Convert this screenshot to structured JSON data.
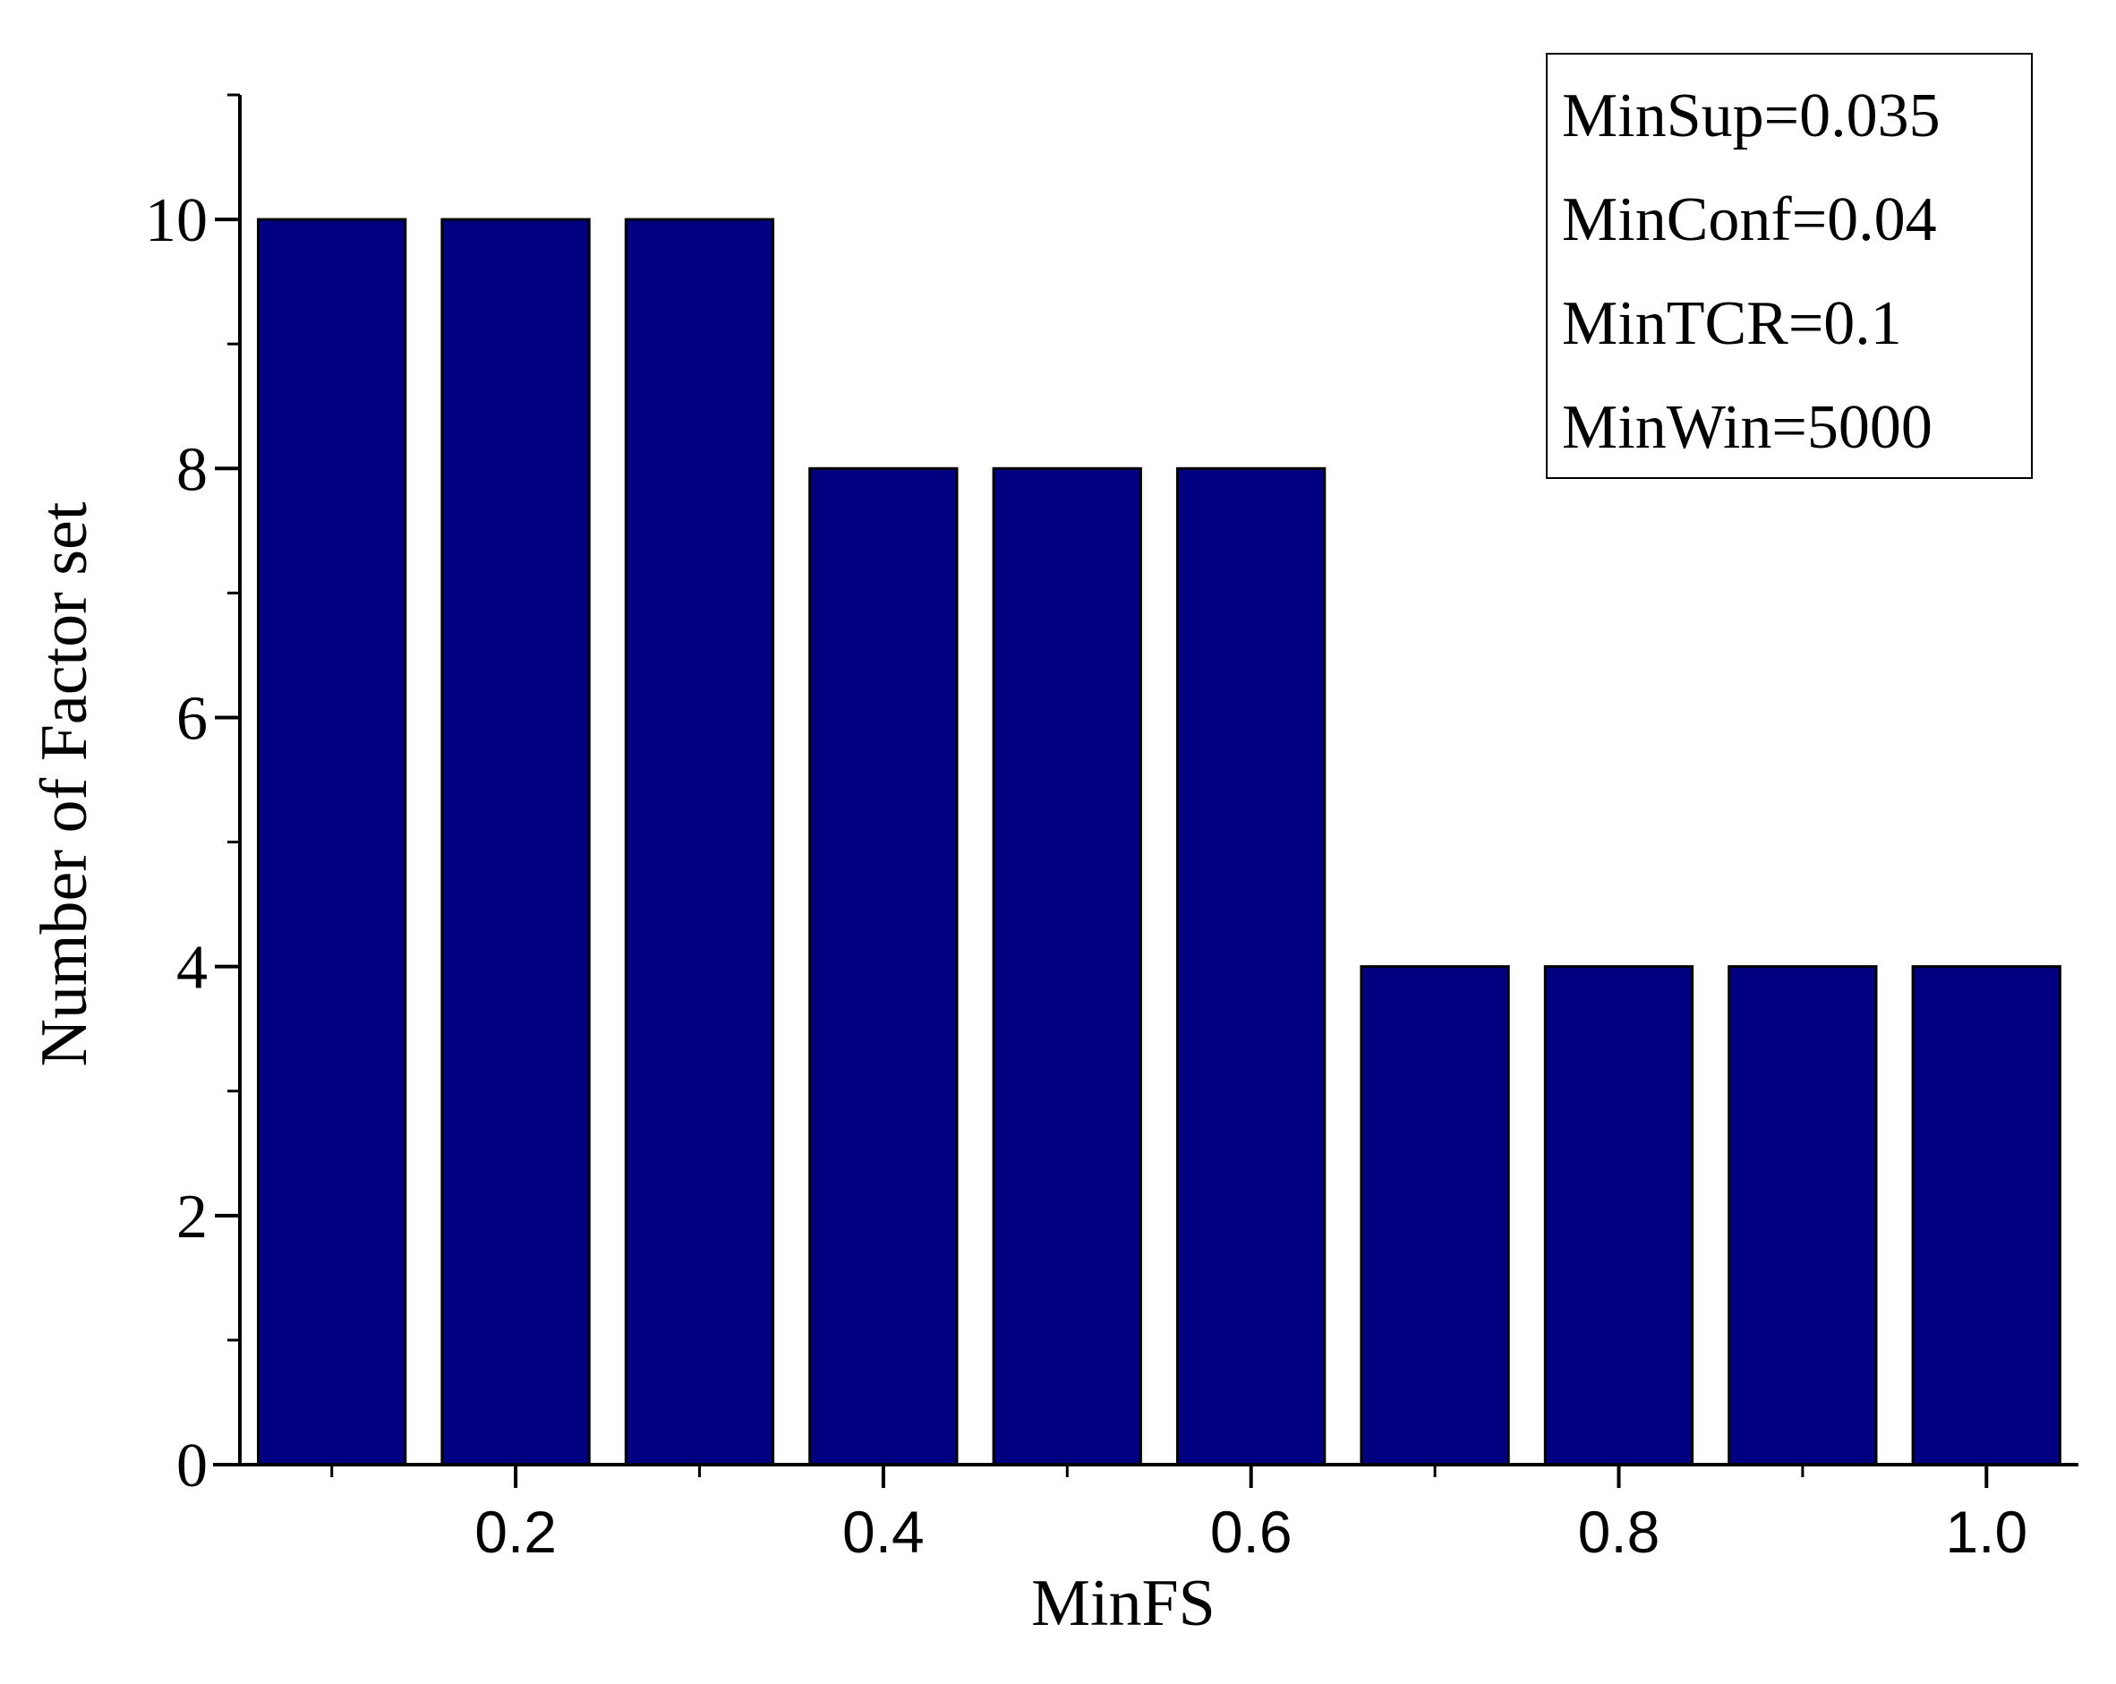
{
  "chart_data": {
    "type": "bar",
    "x": [
      0.1,
      0.2,
      0.3,
      0.4,
      0.5,
      0.6,
      0.7,
      0.8,
      0.9,
      1.0
    ],
    "values": [
      10,
      10,
      10,
      8,
      8,
      8,
      4,
      4,
      4,
      4
    ],
    "xlabel": "MinFS",
    "ylabel": "Number of Factor set",
    "xlim": [
      0.05,
      1.05
    ],
    "ylim": [
      0,
      11
    ],
    "x_ticks": [
      0.1,
      0.2,
      0.3,
      0.4,
      0.5,
      0.6,
      0.7,
      0.8,
      0.9,
      1.0
    ],
    "x_tick_labels": [
      "",
      "0.2",
      "",
      "0.4",
      "",
      "0.6",
      "",
      "0.8",
      "",
      "1.0"
    ],
    "y_ticks": [
      0,
      2,
      4,
      6,
      8,
      10
    ],
    "y_tick_labels": [
      "0",
      "2",
      "4",
      "6",
      "8",
      "10"
    ],
    "y_minor_ticks": [
      1,
      3,
      5,
      7,
      9,
      11
    ],
    "legend": {
      "placement": "top-right",
      "entries": [
        "MinSup=0.035",
        "MinConf=0.04",
        "MinTCR=0.1",
        "MinWin=5000"
      ]
    },
    "grid": false,
    "colors": {
      "bar_fill": "#000080",
      "bar_stroke": "#000000",
      "axis": "#000000"
    }
  }
}
